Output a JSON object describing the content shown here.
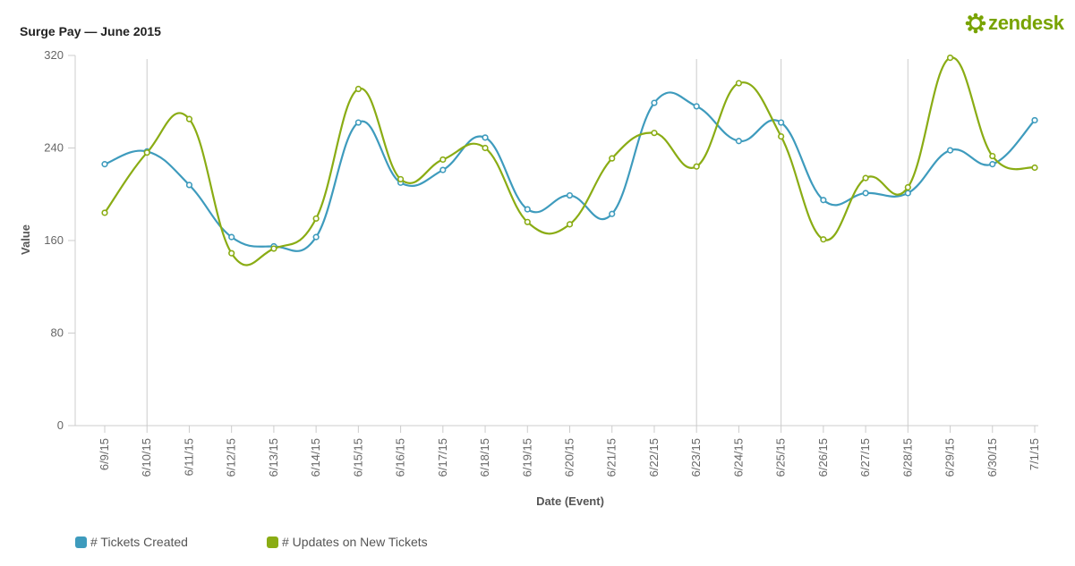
{
  "title": "Surge Pay — June 2015",
  "logo": {
    "text": "zendesk",
    "icon": "zendesk-gear-logo",
    "color": "#78a300"
  },
  "chart_data": {
    "type": "line",
    "xlabel": "Date (Event)",
    "ylabel": "Value",
    "ylim": [
      0,
      320
    ],
    "yticks": [
      0,
      80,
      160,
      240,
      320
    ],
    "categories": [
      "6/9/15",
      "6/10/15",
      "6/11/15",
      "6/12/15",
      "6/13/15",
      "6/14/15",
      "6/15/15",
      "6/16/15",
      "6/17/15",
      "6/18/15",
      "6/19/15",
      "6/20/15",
      "6/21/15",
      "6/22/15",
      "6/23/15",
      "6/24/15",
      "6/25/15",
      "6/26/15",
      "6/27/15",
      "6/28/15",
      "6/29/15",
      "6/30/15",
      "7/1/15"
    ],
    "vertical_markers": [
      "6/10/15",
      "6/23/15",
      "6/25/15",
      "6/28/15"
    ],
    "grid": false,
    "legend_position": "bottom-left",
    "series": [
      {
        "name": "# Tickets Created",
        "color": "#3e9bbd",
        "values": [
          226,
          237,
          208,
          163,
          155,
          163,
          262,
          210,
          221,
          249,
          187,
          199,
          183,
          279,
          276,
          246,
          262,
          195,
          201,
          201,
          238,
          226,
          264
        ]
      },
      {
        "name": "# Updates on New Tickets",
        "color": "#8aac14",
        "values": [
          184,
          236,
          265,
          149,
          153,
          179,
          291,
          213,
          230,
          240,
          176,
          174,
          231,
          253,
          224,
          296,
          250,
          161,
          214,
          206,
          318,
          233,
          223
        ]
      }
    ]
  }
}
